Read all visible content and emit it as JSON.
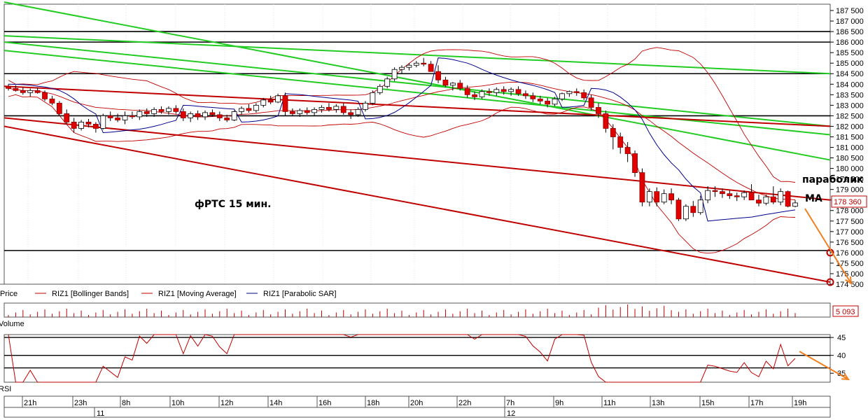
{
  "chart_data": {
    "type": "candlestick",
    "instrument": "RIZ1",
    "price_axis": {
      "ylim": [
        174500,
        187800
      ],
      "ticks": [
        "187 500",
        "187 000",
        "186 500",
        "186 000",
        "185 500",
        "185 000",
        "184 500",
        "184 000",
        "183 500",
        "183 000",
        "182 500",
        "182 000",
        "181 500",
        "181 000",
        "180 500",
        "180 000",
        "179 500",
        "179 000",
        "178 500",
        "178 000",
        "177 500",
        "177 000",
        "176 500",
        "176 000",
        "175 500",
        "175 000",
        "174 500"
      ],
      "tick_values": [
        187500,
        187000,
        186500,
        186000,
        185500,
        185000,
        184500,
        184000,
        183500,
        183000,
        182500,
        182000,
        181500,
        181000,
        180500,
        180000,
        179500,
        179000,
        178500,
        178000,
        177500,
        177000,
        176500,
        176000,
        175500,
        175000,
        174500
      ],
      "last_price_label": "178 360",
      "last_price": 178360
    },
    "time_axis": {
      "labels": [
        "21h",
        "23h",
        "8h",
        "10h",
        "12h",
        "14h",
        "16h",
        "18h",
        "20h",
        "22h",
        "7h",
        "9h",
        "11h",
        "13h",
        "15h",
        "17h",
        "19h"
      ],
      "dates": [
        "11",
        "12"
      ]
    },
    "candles_ohlc": [
      [
        183900,
        184000,
        183700,
        183800
      ],
      [
        183800,
        183950,
        183650,
        183700
      ],
      [
        183700,
        183850,
        183500,
        183600
      ],
      [
        183600,
        183800,
        183400,
        183700
      ],
      [
        183700,
        183850,
        183550,
        183600
      ],
      [
        183600,
        183700,
        183200,
        183300
      ],
      [
        183300,
        183450,
        183000,
        183100
      ],
      [
        183100,
        183200,
        182500,
        182600
      ],
      [
        182600,
        182800,
        182100,
        182200
      ],
      [
        182200,
        182400,
        181700,
        181900
      ],
      [
        181900,
        182300,
        181800,
        182200
      ],
      [
        182200,
        182350,
        181950,
        182100
      ],
      [
        182100,
        182200,
        181700,
        181900
      ],
      [
        181900,
        182600,
        181850,
        182500
      ],
      [
        182500,
        182700,
        182250,
        182400
      ],
      [
        182400,
        182600,
        182200,
        182300
      ],
      [
        182300,
        182700,
        182100,
        182500
      ],
      [
        182500,
        182700,
        182350,
        182450
      ],
      [
        182450,
        182800,
        182300,
        182700
      ],
      [
        182700,
        182850,
        182450,
        182600
      ],
      [
        182600,
        182900,
        182450,
        182800
      ],
      [
        182800,
        182950,
        182600,
        182700
      ],
      [
        182700,
        182950,
        182550,
        182850
      ],
      [
        182850,
        183000,
        182600,
        182700
      ],
      [
        182700,
        182850,
        182250,
        182400
      ],
      [
        182400,
        182700,
        182200,
        182600
      ],
      [
        182600,
        182750,
        182300,
        182450
      ],
      [
        182450,
        182750,
        182300,
        182650
      ],
      [
        182650,
        182800,
        182450,
        182550
      ],
      [
        182550,
        182700,
        182250,
        182400
      ],
      [
        182400,
        182550,
        182200,
        182300
      ],
      [
        182300,
        182750,
        182250,
        182700
      ],
      [
        182700,
        182950,
        182550,
        182850
      ],
      [
        182850,
        183050,
        182650,
        182750
      ],
      [
        182750,
        183100,
        182650,
        183000
      ],
      [
        183000,
        183350,
        182900,
        183250
      ],
      [
        183250,
        183450,
        183050,
        183150
      ],
      [
        183150,
        183550,
        183100,
        183450
      ],
      [
        183450,
        183600,
        182500,
        182700
      ],
      [
        182700,
        182850,
        182500,
        182600
      ],
      [
        182600,
        182850,
        182450,
        182750
      ],
      [
        182750,
        182900,
        182550,
        182650
      ],
      [
        182650,
        182900,
        182500,
        182800
      ],
      [
        182800,
        183000,
        182650,
        182900
      ],
      [
        182900,
        183100,
        182700,
        182800
      ],
      [
        182800,
        183050,
        182650,
        182950
      ],
      [
        182950,
        183100,
        182550,
        182650
      ],
      [
        182650,
        182800,
        182350,
        182550
      ],
      [
        182550,
        182900,
        182450,
        182800
      ],
      [
        182800,
        183200,
        182700,
        183100
      ],
      [
        183100,
        183700,
        183000,
        183600
      ],
      [
        183600,
        184000,
        183500,
        183900
      ],
      [
        183900,
        184350,
        183800,
        184250
      ],
      [
        184250,
        184800,
        184150,
        184700
      ],
      [
        184700,
        184900,
        184500,
        184800
      ],
      [
        184800,
        185000,
        184650,
        184900
      ],
      [
        184900,
        185100,
        184800,
        185000
      ],
      [
        185000,
        185250,
        184850,
        184950
      ],
      [
        184950,
        185100,
        184700,
        184600
      ],
      [
        184600,
        184900,
        184050,
        184200
      ],
      [
        184200,
        184350,
        183850,
        183950
      ],
      [
        183950,
        184100,
        183700,
        184050
      ],
      [
        184050,
        184200,
        183700,
        183800
      ],
      [
        183800,
        183950,
        183350,
        183500
      ],
      [
        183500,
        183650,
        183250,
        183400
      ],
      [
        183400,
        183750,
        183300,
        183650
      ],
      [
        183650,
        183800,
        183450,
        183600
      ],
      [
        183600,
        183850,
        183450,
        183750
      ],
      [
        183750,
        183900,
        183500,
        183650
      ],
      [
        183650,
        183850,
        183450,
        183750
      ],
      [
        183750,
        183900,
        183450,
        183550
      ],
      [
        183550,
        183700,
        183300,
        183450
      ],
      [
        183450,
        183600,
        183150,
        183300
      ],
      [
        183300,
        183450,
        183050,
        183200
      ],
      [
        183200,
        183350,
        182900,
        183050
      ],
      [
        183050,
        183400,
        182950,
        183300
      ],
      [
        183300,
        183600,
        183200,
        183550
      ],
      [
        183550,
        183700,
        183400,
        183650
      ],
      [
        183650,
        183800,
        183450,
        183600
      ],
      [
        183600,
        183750,
        183250,
        183350
      ],
      [
        183350,
        183500,
        182750,
        182900
      ],
      [
        182900,
        183100,
        182400,
        182600
      ],
      [
        182600,
        182750,
        181700,
        181900
      ],
      [
        181900,
        182100,
        180900,
        181500
      ],
      [
        181500,
        181700,
        180700,
        181000
      ],
      [
        181000,
        181250,
        180300,
        180700
      ],
      [
        180700,
        180850,
        179600,
        179800
      ],
      [
        179800,
        180000,
        178200,
        178400
      ],
      [
        178400,
        179050,
        178200,
        178900
      ],
      [
        178900,
        179100,
        178200,
        178400
      ],
      [
        178400,
        179000,
        178300,
        178800
      ],
      [
        178800,
        179050,
        178300,
        178500
      ],
      [
        178500,
        178600,
        177500,
        177600
      ],
      [
        177600,
        178300,
        177500,
        178200
      ],
      [
        178200,
        178450,
        177700,
        177900
      ],
      [
        177900,
        178700,
        177800,
        178500
      ],
      [
        178500,
        179150,
        178350,
        178950
      ],
      [
        178950,
        179150,
        178650,
        178900
      ],
      [
        178900,
        179050,
        178600,
        178800
      ],
      [
        178800,
        178950,
        178550,
        178700
      ],
      [
        178700,
        178850,
        178450,
        178650
      ],
      [
        178650,
        178950,
        178500,
        178850
      ],
      [
        178850,
        179250,
        178500,
        178500
      ],
      [
        178500,
        178750,
        178200,
        178350
      ],
      [
        178350,
        178750,
        178250,
        178650
      ],
      [
        178650,
        179150,
        178300,
        178400
      ],
      [
        178400,
        179050,
        178250,
        178900
      ],
      [
        178900,
        178950,
        178150,
        178200
      ],
      [
        178200,
        178500,
        178150,
        178360
      ]
    ],
    "trendlines_green": [
      [
        [
          0,
          187900
        ],
        [
          1186,
          180400
        ]
      ],
      [
        [
          0,
          186300
        ],
        [
          1186,
          184500
        ]
      ],
      [
        [
          0,
          185600
        ],
        [
          1186,
          181600
        ]
      ],
      [
        [
          0,
          186000
        ],
        [
          1186,
          182000
        ]
      ]
    ],
    "trendlines_red": [
      [
        [
          0,
          182000
        ],
        [
          1186,
          174600
        ]
      ],
      [
        [
          0,
          183900
        ],
        [
          1186,
          182000
        ]
      ],
      [
        [
          0,
          182400
        ],
        [
          1186,
          178500
        ]
      ]
    ],
    "horizontal_levels": [
      186500,
      186000,
      184500,
      182500,
      176100
    ],
    "target_points": [
      176000,
      174600
    ],
    "legend": [
      {
        "name": "Price",
        "color": "#000000"
      },
      {
        "name": "RIZ1 [Bollinger Bands]",
        "color": "#c00000"
      },
      {
        "name": "RIZ1 [Moving Average]",
        "color": "#c00000"
      },
      {
        "name": "RIZ1 [Parabolic SAR]",
        "color": "#000080"
      }
    ],
    "volume": {
      "label": "Volume",
      "last_value_label": "5 093"
    },
    "rsi": {
      "label": "RSI",
      "ticks": [
        "45",
        "40",
        "35"
      ],
      "tick_values": [
        45,
        40,
        35
      ],
      "levels": [
        45,
        40,
        36.5
      ],
      "ylim": [
        32.5,
        45.8
      ]
    },
    "annotations": {
      "title": "фРТС   15 мин.",
      "parabolic": "параболик",
      "ma": "MA"
    }
  },
  "colors": {
    "bull": "#ffffff",
    "bear": "#e00000",
    "green": "#22cc22",
    "red_line": "#c00000",
    "sar": "#00008b",
    "arrow": "#f08020",
    "level": "#000000"
  }
}
